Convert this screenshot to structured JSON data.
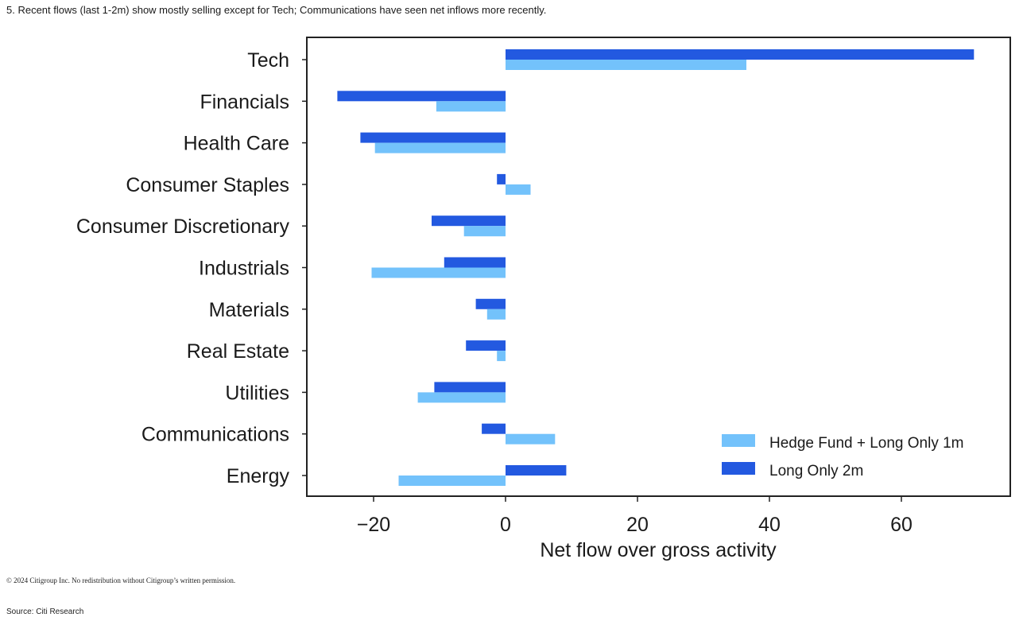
{
  "header": {
    "title": "5. Recent flows (last 1-2m) show mostly selling except for Tech; Communications have seen net inflows more recently."
  },
  "footer": {
    "copyright": "© 2024 Citigroup Inc. No redistribution without Citigroup’s written permission.",
    "source": "Source: Citi Research"
  },
  "chart_data": {
    "type": "bar",
    "orientation": "horizontal",
    "title": "",
    "xlabel": "Net flow over gross activity",
    "ylabel": "",
    "xlim": [
      -30,
      76
    ],
    "xticks": [
      -20,
      0,
      20,
      40,
      60
    ],
    "xtick_labels": [
      "−20",
      "0",
      "20",
      "40",
      "60"
    ],
    "grid": false,
    "legend_position": "bottom-right",
    "categories": [
      "Tech",
      "Financials",
      "Health Care",
      "Consumer Staples",
      "Consumer Discretionary",
      "Industrials",
      "Materials",
      "Real Estate",
      "Utilities",
      "Communications",
      "Energy"
    ],
    "series": [
      {
        "name": "Hedge Fund + Long Only 1m",
        "color": "#73C2FB",
        "values": [
          36.5,
          -10.5,
          -19.8,
          3.8,
          -6.3,
          -20.3,
          -2.8,
          -1.3,
          -13.3,
          7.5,
          -16.2
        ]
      },
      {
        "name": "Long Only 2m",
        "color": "#2359E0",
        "values": [
          71.0,
          -25.5,
          -22.0,
          -1.3,
          -11.2,
          -9.3,
          -4.5,
          -6.0,
          -10.8,
          -3.6,
          9.2
        ]
      }
    ]
  }
}
